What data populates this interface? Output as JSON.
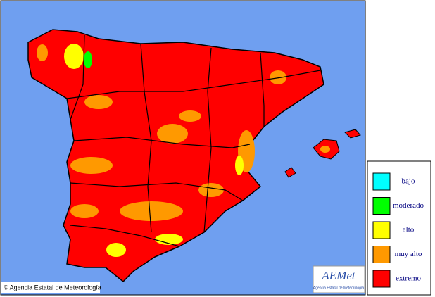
{
  "legend": {
    "items": [
      {
        "label": "bajo",
        "color": "#00ffff"
      },
      {
        "label": "moderado",
        "color": "#00ff00"
      },
      {
        "label": "alto",
        "color": "#ffff00"
      },
      {
        "label": "muy alto",
        "color": "#ff9900"
      },
      {
        "label": "extremo",
        "color": "#ff0000"
      }
    ]
  },
  "copyright": "© Agencia Estatal de Meteorología",
  "logo": {
    "text": "AEMet",
    "subtitle": "Agencia Estatal de Meteorología"
  }
}
